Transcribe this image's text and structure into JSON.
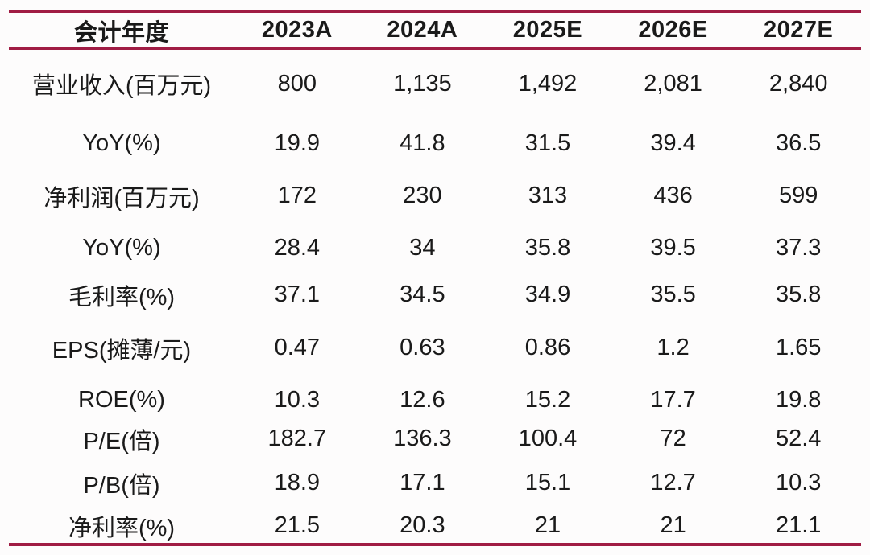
{
  "colors": {
    "rule": "#a01c44",
    "text": "#1a1a1a",
    "background": "#fdfcfc"
  },
  "chart_data": {
    "type": "table",
    "title": "",
    "columns": [
      "会计年度",
      "2023A",
      "2024A",
      "2025E",
      "2026E",
      "2027E"
    ],
    "rows": [
      {
        "label": "营业收入(百万元)",
        "values": [
          "800",
          "1,135",
          "1,492",
          "2,081",
          "2,840"
        ]
      },
      {
        "label": "YoY(%)",
        "values": [
          "19.9",
          "41.8",
          "31.5",
          "39.4",
          "36.5"
        ]
      },
      {
        "label": "净利润(百万元)",
        "values": [
          "172",
          "230",
          "313",
          "436",
          "599"
        ]
      },
      {
        "label": "YoY(%)",
        "values": [
          "28.4",
          "34",
          "35.8",
          "39.5",
          "37.3"
        ]
      },
      {
        "label": "毛利率(%)",
        "values": [
          "37.1",
          "34.5",
          "34.9",
          "35.5",
          "35.8"
        ]
      },
      {
        "label": "EPS(摊薄/元)",
        "values": [
          "0.47",
          "0.63",
          "0.86",
          "1.2",
          "1.65"
        ]
      },
      {
        "label": "ROE(%)",
        "values": [
          "10.3",
          "12.6",
          "15.2",
          "17.7",
          "19.8"
        ]
      },
      {
        "label": "P/E(倍)",
        "values": [
          "182.7",
          "136.3",
          "100.4",
          "72",
          "52.4"
        ]
      },
      {
        "label": "P/B(倍)",
        "values": [
          "18.9",
          "17.1",
          "15.1",
          "12.7",
          "10.3"
        ]
      },
      {
        "label": "净利率(%)",
        "values": [
          "21.5",
          "20.3",
          "21",
          "21",
          "21.1"
        ]
      }
    ]
  }
}
